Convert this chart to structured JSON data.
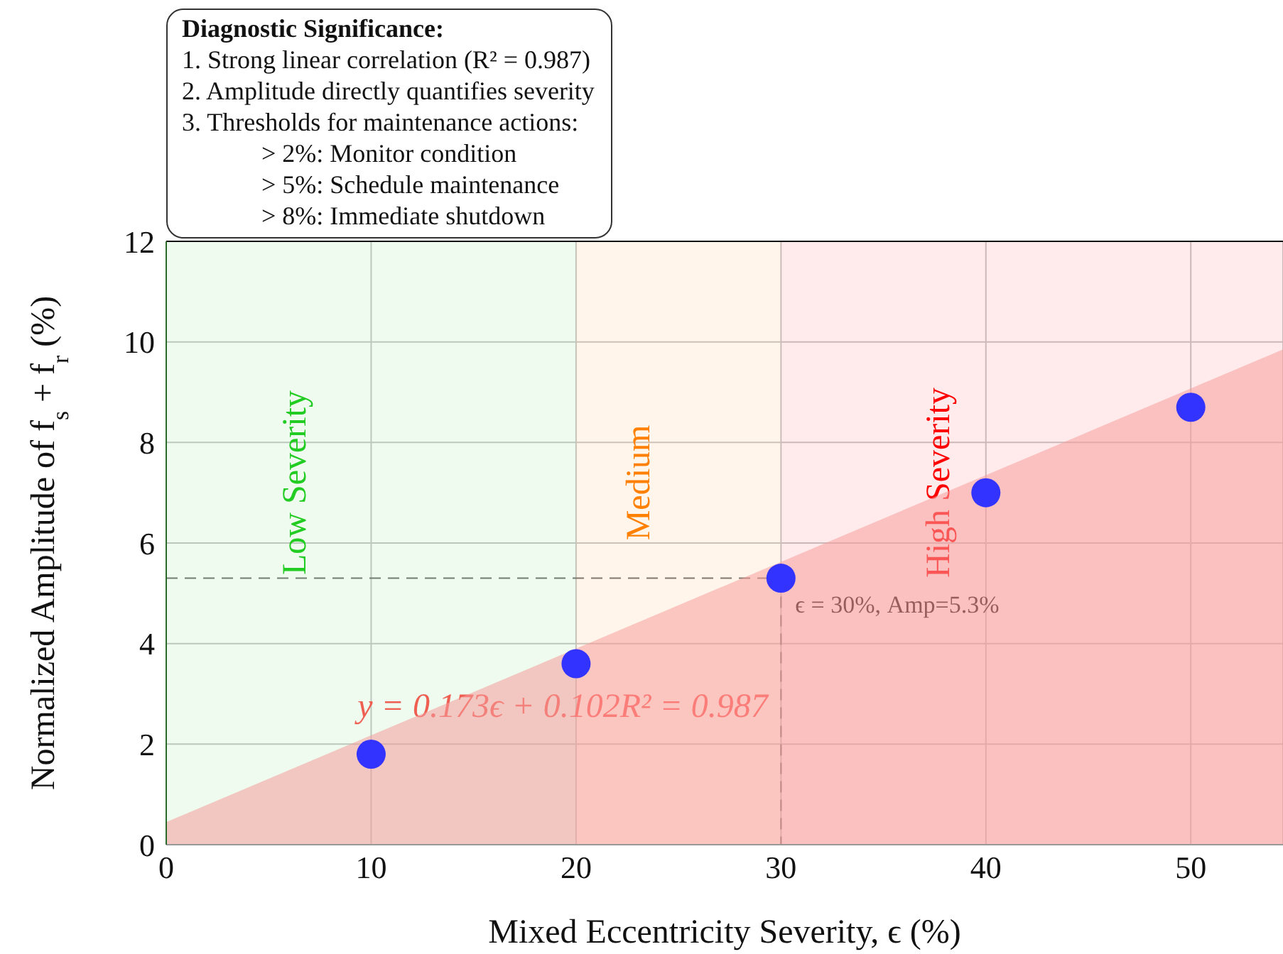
{
  "chart_data": {
    "type": "scatter",
    "xlabel": "Mixed Eccentricity Severity, ϵ (%)",
    "ylabel": "Normalized Amplitude of f$_{s}$ + f$_{r}$ (%)",
    "series": [
      {
        "type": "area",
        "color": "#f79c9c",
        "x": [
          0,
          54.5
        ],
        "values": [
          0.45,
          9.85
        ]
      },
      {
        "marker": "circle",
        "color": "#3333ff",
        "x": [
          10,
          20,
          30,
          40,
          50
        ],
        "values": [
          1.8,
          3.6,
          5.3,
          7.0,
          8.7
        ]
      }
    ],
    "xlim": [
      0,
      54.5
    ],
    "xticks": [
      0,
      10,
      20,
      30,
      40,
      50
    ],
    "ylim": [
      0,
      12
    ],
    "yticks": [
      0,
      2,
      4,
      6,
      8,
      10,
      12
    ],
    "grid": true,
    "bands": [
      {
        "axis": "x",
        "from": 0,
        "to": 20,
        "label": "Low Severity",
        "color": "#22cc22"
      },
      {
        "axis": "x",
        "from": 20,
        "to": 30,
        "label": "Medium",
        "color": "#ff8000"
      },
      {
        "axis": "x",
        "from": 30,
        "to": 54.5,
        "label": "High Severity",
        "color": "#ff0000"
      }
    ],
    "annotations": [
      "Diagnostic Significance:",
      "1. Strong linear correlation (R² = 0.987)",
      "2. Amplitude directly quantifies severity",
      "3. Thresholds for maintenance actions:",
      "> 2%: Monitor condition",
      "> 5%: Schedule maintenance",
      "> 8%: Immediate shutdown",
      "y = 0.173ϵ + 0.102R² = 0.987",
      {
        "text": "ϵ = 30%, Amp=5.3%",
        "x": 30,
        "y": 5.3
      }
    ]
  }
}
